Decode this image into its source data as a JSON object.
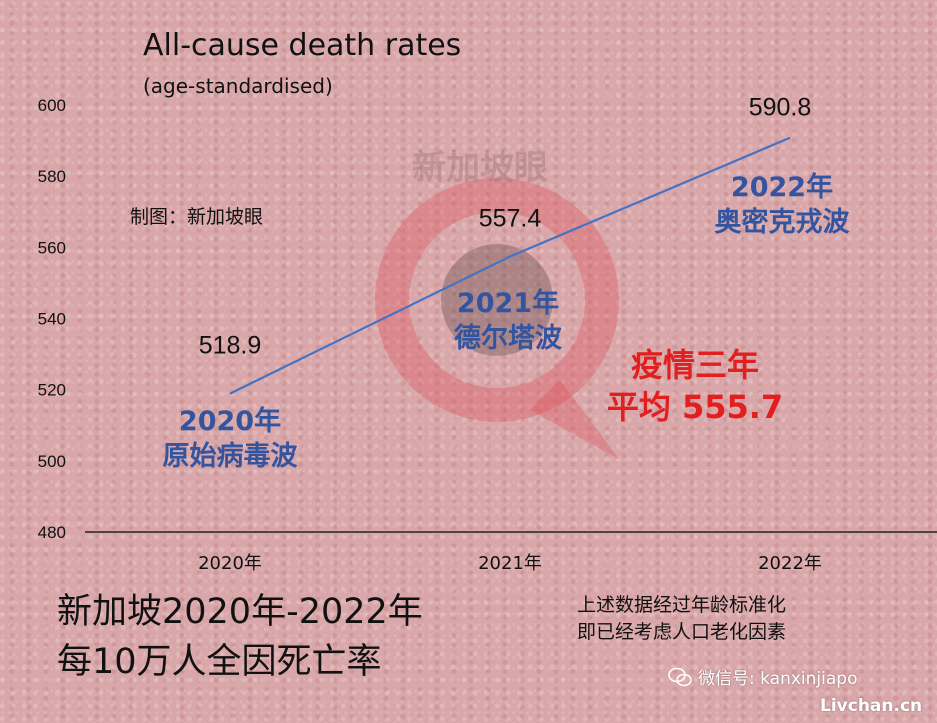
{
  "chart_data": {
    "type": "line",
    "title": "All-cause death rates",
    "subtitle": "(age-standardised)",
    "categories": [
      "2020年",
      "2021年",
      "2022年"
    ],
    "series": [
      {
        "values": [
          518.9,
          557.4,
          590.8
        ]
      }
    ],
    "data_labels": [
      "518.9",
      "557.4",
      "590.8"
    ],
    "ylim": [
      480,
      600
    ],
    "yticks": [
      480,
      500,
      520,
      540,
      560,
      580,
      600
    ],
    "grid": false,
    "line_color": "#4472c4",
    "annotations": {
      "wave_2020": [
        "2020年",
        "原始病毒波"
      ],
      "wave_2021": [
        "2021年",
        "德尔塔波"
      ],
      "wave_2022": [
        "2022年",
        "奥密克戎波"
      ],
      "summary": [
        "疫情三年",
        "平均 555.7"
      ]
    }
  },
  "credit": "制图：新加坡眼",
  "caption": [
    "新加坡2020年-2022年",
    "每10万人全因死亡率"
  ],
  "note": [
    "上述数据经过年龄标准化",
    "即已经考虑人口老化因素"
  ],
  "watermark": {
    "brand": "新加坡眼",
    "wechat": "微信号: kanxinjiapo",
    "wechat_icon": "wechat-icon",
    "site": "Livchan.cn"
  },
  "colors": {
    "wave_text": "#3355a0",
    "summary_text": "#e21f1f",
    "line": "#4472c4"
  }
}
